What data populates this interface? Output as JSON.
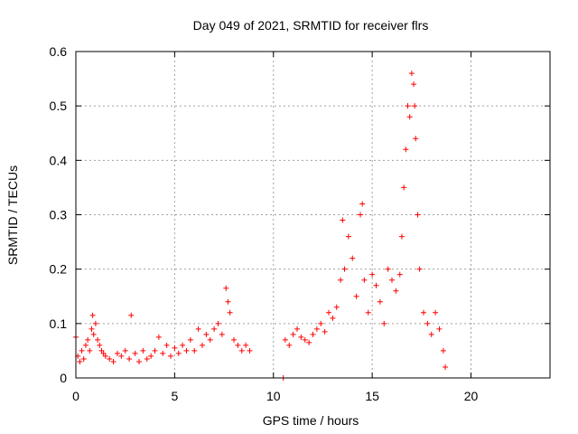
{
  "chart_data": {
    "type": "scatter",
    "title": "Day 049 of 2021, SRMTID for receiver flrs",
    "xlabel": "GPS time / hours",
    "ylabel": "SRMTID / TECUs",
    "xlim": [
      0,
      24
    ],
    "ylim": [
      0,
      0.6
    ],
    "xticks": [
      0,
      5,
      10,
      15,
      20
    ],
    "yticks": [
      0,
      0.1,
      0.2,
      0.3,
      0.4,
      0.5,
      0.6
    ],
    "grid": true,
    "marker": "+",
    "color": "#ff0000",
    "series": [
      {
        "name": "flrs",
        "points": [
          [
            0.0,
            0.075
          ],
          [
            0.1,
            0.04
          ],
          [
            0.2,
            0.03
          ],
          [
            0.3,
            0.05
          ],
          [
            0.4,
            0.035
          ],
          [
            0.5,
            0.06
          ],
          [
            0.6,
            0.07
          ],
          [
            0.7,
            0.05
          ],
          [
            0.8,
            0.09
          ],
          [
            0.85,
            0.115
          ],
          [
            0.9,
            0.08
          ],
          [
            1.0,
            0.1
          ],
          [
            1.1,
            0.07
          ],
          [
            1.2,
            0.06
          ],
          [
            1.3,
            0.05
          ],
          [
            1.4,
            0.045
          ],
          [
            1.5,
            0.04
          ],
          [
            1.7,
            0.035
          ],
          [
            1.9,
            0.03
          ],
          [
            2.1,
            0.045
          ],
          [
            2.3,
            0.04
          ],
          [
            2.5,
            0.05
          ],
          [
            2.7,
            0.035
          ],
          [
            2.8,
            0.115
          ],
          [
            3.0,
            0.045
          ],
          [
            3.2,
            0.03
          ],
          [
            3.4,
            0.05
          ],
          [
            3.6,
            0.035
          ],
          [
            3.8,
            0.04
          ],
          [
            4.0,
            0.05
          ],
          [
            4.2,
            0.075
          ],
          [
            4.4,
            0.045
          ],
          [
            4.6,
            0.06
          ],
          [
            4.8,
            0.04
          ],
          [
            5.0,
            0.055
          ],
          [
            5.2,
            0.045
          ],
          [
            5.4,
            0.06
          ],
          [
            5.6,
            0.05
          ],
          [
            5.8,
            0.07
          ],
          [
            6.0,
            0.05
          ],
          [
            6.2,
            0.09
          ],
          [
            6.4,
            0.06
          ],
          [
            6.6,
            0.08
          ],
          [
            6.8,
            0.07
          ],
          [
            7.0,
            0.09
          ],
          [
            7.2,
            0.1
          ],
          [
            7.4,
            0.08
          ],
          [
            7.6,
            0.165
          ],
          [
            7.7,
            0.14
          ],
          [
            7.8,
            0.12
          ],
          [
            8.0,
            0.07
          ],
          [
            8.2,
            0.06
          ],
          [
            8.4,
            0.05
          ],
          [
            8.6,
            0.06
          ],
          [
            8.8,
            0.05
          ],
          [
            10.5,
            0.0
          ],
          [
            10.6,
            0.07
          ],
          [
            10.8,
            0.06
          ],
          [
            11.0,
            0.08
          ],
          [
            11.2,
            0.09
          ],
          [
            11.4,
            0.075
          ],
          [
            11.6,
            0.07
          ],
          [
            11.8,
            0.065
          ],
          [
            12.0,
            0.08
          ],
          [
            12.2,
            0.09
          ],
          [
            12.4,
            0.1
          ],
          [
            12.6,
            0.085
          ],
          [
            12.8,
            0.12
          ],
          [
            13.0,
            0.11
          ],
          [
            13.2,
            0.13
          ],
          [
            13.4,
            0.18
          ],
          [
            13.5,
            0.29
          ],
          [
            13.6,
            0.2
          ],
          [
            13.8,
            0.26
          ],
          [
            14.0,
            0.22
          ],
          [
            14.2,
            0.15
          ],
          [
            14.4,
            0.3
          ],
          [
            14.5,
            0.32
          ],
          [
            14.6,
            0.18
          ],
          [
            14.8,
            0.12
          ],
          [
            15.0,
            0.19
          ],
          [
            15.2,
            0.17
          ],
          [
            15.4,
            0.14
          ],
          [
            15.6,
            0.1
          ],
          [
            15.8,
            0.2
          ],
          [
            16.0,
            0.18
          ],
          [
            16.2,
            0.16
          ],
          [
            16.4,
            0.19
          ],
          [
            16.5,
            0.26
          ],
          [
            16.6,
            0.35
          ],
          [
            16.7,
            0.42
          ],
          [
            16.8,
            0.5
          ],
          [
            16.9,
            0.48
          ],
          [
            17.0,
            0.56
          ],
          [
            17.1,
            0.54
          ],
          [
            17.15,
            0.5
          ],
          [
            17.2,
            0.44
          ],
          [
            17.3,
            0.3
          ],
          [
            17.4,
            0.2
          ],
          [
            17.6,
            0.12
          ],
          [
            17.8,
            0.1
          ],
          [
            18.0,
            0.08
          ],
          [
            18.2,
            0.12
          ],
          [
            18.4,
            0.09
          ],
          [
            18.6,
            0.05
          ],
          [
            18.7,
            0.02
          ]
        ]
      }
    ]
  }
}
